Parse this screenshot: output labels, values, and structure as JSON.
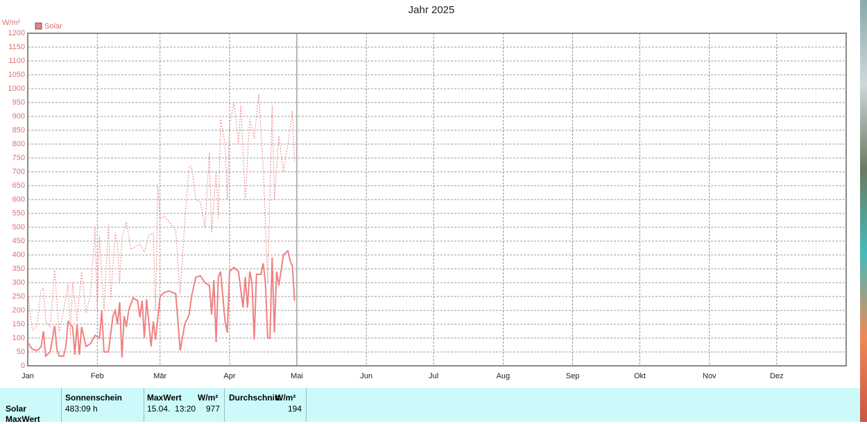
{
  "chart_data": {
    "type": "line",
    "title": "Jahr 2025",
    "y_label": "W/m²",
    "xlim": [
      0,
      365
    ],
    "ylim": [
      0,
      1200
    ],
    "grid": true,
    "legend": "top-left",
    "xticks": [
      {
        "value": 0,
        "label": "Jan"
      },
      {
        "value": 31,
        "label": "Feb"
      },
      {
        "value": 59,
        "label": "Mär"
      },
      {
        "value": 90,
        "label": "Apr"
      },
      {
        "value": 120,
        "label": "Mai"
      },
      {
        "value": 151,
        "label": "Jun"
      },
      {
        "value": 181,
        "label": "Jul"
      },
      {
        "value": 212,
        "label": "Aug"
      },
      {
        "value": 243,
        "label": "Sep"
      },
      {
        "value": 273,
        "label": "Okt"
      },
      {
        "value": 304,
        "label": "Nov"
      },
      {
        "value": 334,
        "label": "Dez"
      }
    ],
    "yticks": [
      0,
      50,
      100,
      150,
      200,
      250,
      300,
      350,
      400,
      450,
      500,
      550,
      600,
      650,
      700,
      750,
      800,
      850,
      900,
      950,
      1000,
      1050,
      1100,
      1150,
      1200
    ],
    "series": [
      {
        "name": "Solar",
        "color": "#f08080",
        "style": "solid",
        "x": [
          0,
          2,
          4,
          5,
          6,
          7,
          8,
          10,
          12,
          13,
          14,
          16,
          17,
          18,
          20,
          21,
          22,
          23,
          24,
          26,
          28,
          30,
          32,
          33,
          34,
          36,
          38,
          39,
          40,
          41,
          42,
          43,
          44,
          45,
          47,
          49,
          50,
          51,
          52,
          53,
          55,
          56,
          57,
          59,
          61,
          63,
          66,
          68,
          70,
          72,
          73,
          75,
          77,
          79,
          81,
          82,
          83,
          84,
          85,
          86,
          88,
          89,
          90,
          92,
          94,
          96,
          97,
          98,
          99,
          100,
          101,
          102,
          104,
          105,
          106,
          107,
          108,
          109,
          110,
          111,
          112,
          114,
          116,
          117,
          118,
          119
        ],
        "values": [
          85,
          60,
          55,
          60,
          70,
          125,
          35,
          50,
          145,
          60,
          35,
          35,
          70,
          160,
          140,
          40,
          150,
          40,
          140,
          70,
          80,
          110,
          100,
          200,
          50,
          50,
          180,
          200,
          150,
          230,
          30,
          180,
          140,
          200,
          245,
          235,
          175,
          235,
          100,
          240,
          70,
          160,
          95,
          250,
          265,
          270,
          260,
          55,
          150,
          185,
          250,
          320,
          325,
          300,
          290,
          185,
          310,
          85,
          320,
          340,
          160,
          120,
          340,
          355,
          340,
          210,
          320,
          210,
          340,
          300,
          95,
          330,
          330,
          370,
          300,
          100,
          100,
          390,
          120,
          340,
          290,
          400,
          415,
          380,
          360,
          235
        ]
      },
      {
        "color": "#f08080",
        "style": "dotted",
        "x": [
          0,
          2,
          4,
          6,
          7,
          8,
          10,
          12,
          14,
          16,
          18,
          19,
          20,
          22,
          24,
          26,
          28,
          30,
          31,
          32,
          34,
          36,
          37,
          39,
          40,
          41,
          42,
          44,
          46,
          48,
          50,
          52,
          54,
          56,
          57,
          58,
          59,
          61,
          64,
          66,
          68,
          70,
          72,
          73,
          75,
          77,
          79,
          81,
          82,
          84,
          85,
          86,
          88,
          89,
          90,
          92,
          94,
          95,
          97,
          99,
          101,
          103,
          105,
          107,
          109,
          110,
          112,
          114,
          116,
          118,
          119
        ],
        "values": [
          270,
          130,
          140,
          275,
          280,
          160,
          140,
          345,
          120,
          200,
          295,
          110,
          300,
          160,
          340,
          190,
          260,
          500,
          200,
          470,
          200,
          510,
          240,
          480,
          440,
          300,
          460,
          520,
          420,
          430,
          440,
          410,
          470,
          480,
          200,
          650,
          530,
          540,
          510,
          490,
          260,
          520,
          720,
          720,
          600,
          590,
          500,
          770,
          480,
          700,
          530,
          890,
          800,
          600,
          870,
          950,
          800,
          940,
          600,
          890,
          820,
          980,
          720,
          300,
          940,
          600,
          830,
          700,
          800,
          920,
          730
        ]
      }
    ]
  },
  "summary": {
    "row_labels": [
      "Solar",
      "MaxWert"
    ],
    "sonnenschein": {
      "header": "Sonnenschein",
      "value": "483:09 h"
    },
    "maxwert": {
      "header": "MaxWert",
      "unit": "W/m²",
      "time": "15.04.  13:20",
      "value": 977
    },
    "durchschnitt": {
      "header": "Durchschnitt",
      "unit": "W/m²",
      "value": 194
    }
  }
}
